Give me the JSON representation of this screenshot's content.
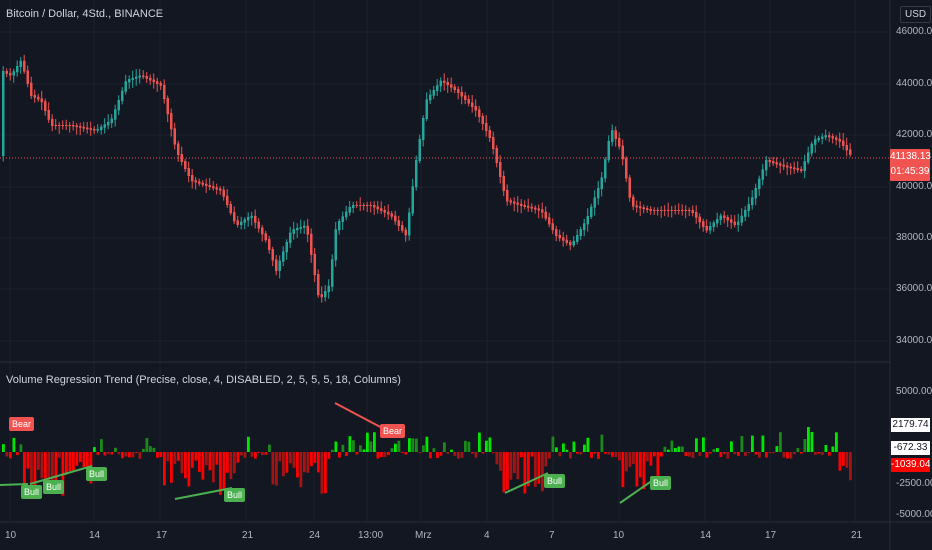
{
  "chart": {
    "title": "Bitcoin / Dollar, 4Std., BINANCE",
    "currency": "USD",
    "price_axis": [
      "46000.00",
      "44000.00",
      "42000.00",
      "40000.00",
      "38000.00",
      "36000.00",
      "34000.00"
    ],
    "last_price": "41138.13",
    "countdown": "01:45:39"
  },
  "indicator": {
    "title": "Volume Regression Trend (Precise, close, 4, DISABLED, 2, 5, 5, 5, 18, Columns)",
    "axis": [
      "5000.00",
      "-2500.00",
      "-5000.00"
    ],
    "value_top": "2179.74",
    "value_mid": "-672.33",
    "value_bot": "-1039.04",
    "labels": {
      "bull": "Bull",
      "bear": "Bear"
    }
  },
  "time_axis": [
    "10",
    "14",
    "17",
    "21",
    "24",
    "13:00",
    "Mrz",
    "4",
    "7",
    "10",
    "14",
    "17",
    "21"
  ],
  "colors": {
    "up": "#26a69a",
    "down": "#ef5350",
    "pos": "#00e600",
    "neg": "#ff0000",
    "bg": "#131722"
  }
}
